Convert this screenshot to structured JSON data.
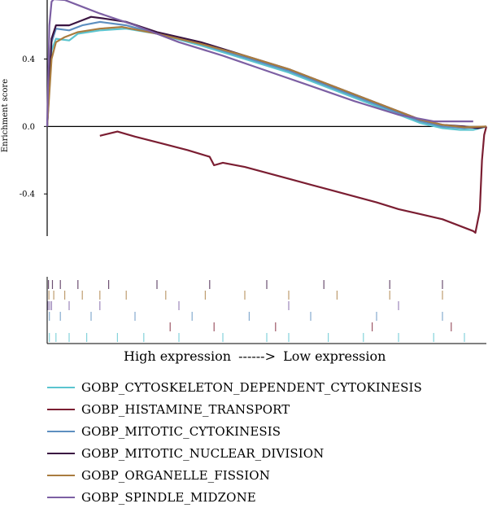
{
  "chart_data": {
    "type": "line",
    "title": "",
    "xlabel": "",
    "ylabel": "Enrichment score",
    "ylim": [
      -0.65,
      0.75
    ],
    "xlim": [
      0,
      1
    ],
    "yticks": [
      "0.4",
      "0.0",
      "-0.4"
    ],
    "ytick_values": [
      0.4,
      0.0,
      -0.4
    ],
    "grid": false,
    "legend_placement": "bottom",
    "series": [
      {
        "name": "GOBP_CYTOSKELETON_DEPENDENT_CYTOKINESIS",
        "color": "#5bc4cf",
        "points": [
          [
            0.0,
            0.0
          ],
          [
            0.01,
            0.45
          ],
          [
            0.02,
            0.52
          ],
          [
            0.05,
            0.51
          ],
          [
            0.07,
            0.55
          ],
          [
            0.12,
            0.57
          ],
          [
            0.18,
            0.58
          ],
          [
            0.25,
            0.55
          ],
          [
            0.35,
            0.48
          ],
          [
            0.45,
            0.4
          ],
          [
            0.55,
            0.32
          ],
          [
            0.65,
            0.22
          ],
          [
            0.75,
            0.12
          ],
          [
            0.85,
            0.02
          ],
          [
            0.9,
            -0.01
          ],
          [
            0.94,
            -0.02
          ],
          [
            0.97,
            -0.02
          ],
          [
            1.0,
            0.0
          ]
        ],
        "hits": [
          0.005,
          0.02,
          0.05,
          0.09,
          0.16,
          0.22,
          0.3,
          0.4,
          0.5,
          0.55,
          0.64,
          0.72,
          0.8,
          0.88,
          0.95
        ]
      },
      {
        "name": "GOBP_HISTAMINE_TRANSPORT",
        "color": "#7b1e32",
        "points": [
          [
            0.12,
            -0.055
          ],
          [
            0.16,
            -0.03
          ],
          [
            0.2,
            -0.06
          ],
          [
            0.26,
            -0.1
          ],
          [
            0.32,
            -0.14
          ],
          [
            0.37,
            -0.18
          ],
          [
            0.38,
            -0.23
          ],
          [
            0.4,
            -0.215
          ],
          [
            0.45,
            -0.24
          ],
          [
            0.55,
            -0.31
          ],
          [
            0.65,
            -0.38
          ],
          [
            0.75,
            -0.45
          ],
          [
            0.8,
            -0.49
          ],
          [
            0.85,
            -0.52
          ],
          [
            0.9,
            -0.55
          ],
          [
            0.97,
            -0.62
          ],
          [
            0.975,
            -0.63
          ],
          [
            0.985,
            -0.5
          ],
          [
            0.99,
            -0.2
          ],
          [
            0.995,
            -0.05
          ],
          [
            1.0,
            0.0
          ]
        ],
        "hits": [
          0.28,
          0.38,
          0.52,
          0.74,
          0.92
        ]
      },
      {
        "name": "GOBP_MITOTIC_CYTOKINESIS",
        "color": "#5d8fc0",
        "points": [
          [
            0.0,
            0.0
          ],
          [
            0.01,
            0.5
          ],
          [
            0.02,
            0.58
          ],
          [
            0.05,
            0.57
          ],
          [
            0.08,
            0.6
          ],
          [
            0.12,
            0.62
          ],
          [
            0.18,
            0.6
          ],
          [
            0.25,
            0.55
          ],
          [
            0.35,
            0.49
          ],
          [
            0.45,
            0.41
          ],
          [
            0.55,
            0.33
          ],
          [
            0.65,
            0.23
          ],
          [
            0.75,
            0.13
          ],
          [
            0.85,
            0.03
          ],
          [
            0.9,
            0.0
          ],
          [
            0.95,
            -0.01
          ],
          [
            1.0,
            0.0
          ]
        ],
        "hits": [
          0.005,
          0.03,
          0.1,
          0.2,
          0.33,
          0.46,
          0.6,
          0.75,
          0.9
        ]
      },
      {
        "name": "GOBP_MITOTIC_NUCLEAR_DIVISION",
        "color": "#3b1542",
        "points": [
          [
            0.0,
            0.0
          ],
          [
            0.01,
            0.52
          ],
          [
            0.02,
            0.6
          ],
          [
            0.05,
            0.6
          ],
          [
            0.08,
            0.63
          ],
          [
            0.1,
            0.65
          ],
          [
            0.13,
            0.64
          ],
          [
            0.18,
            0.62
          ],
          [
            0.25,
            0.56
          ],
          [
            0.35,
            0.5
          ],
          [
            0.45,
            0.42
          ],
          [
            0.55,
            0.34
          ],
          [
            0.65,
            0.24
          ],
          [
            0.75,
            0.14
          ],
          [
            0.85,
            0.04
          ],
          [
            0.9,
            0.01
          ],
          [
            0.95,
            0.0
          ],
          [
            0.98,
            -0.01
          ],
          [
            1.0,
            0.0
          ]
        ],
        "hits": [
          0.003,
          0.012,
          0.03,
          0.07,
          0.14,
          0.25,
          0.37,
          0.5,
          0.63,
          0.78,
          0.9
        ]
      },
      {
        "name": "GOBP_ORGANELLE_FISSION",
        "color": "#a97c3f",
        "points": [
          [
            0.0,
            0.0
          ],
          [
            0.01,
            0.4
          ],
          [
            0.02,
            0.5
          ],
          [
            0.04,
            0.53
          ],
          [
            0.07,
            0.56
          ],
          [
            0.12,
            0.58
          ],
          [
            0.17,
            0.59
          ],
          [
            0.25,
            0.55
          ],
          [
            0.35,
            0.49
          ],
          [
            0.45,
            0.42
          ],
          [
            0.55,
            0.34
          ],
          [
            0.65,
            0.24
          ],
          [
            0.75,
            0.14
          ],
          [
            0.85,
            0.04
          ],
          [
            0.9,
            0.01
          ],
          [
            0.95,
            -0.005
          ],
          [
            1.0,
            0.0
          ]
        ],
        "hits": [
          0.004,
          0.015,
          0.04,
          0.08,
          0.12,
          0.18,
          0.27,
          0.36,
          0.45,
          0.55,
          0.66,
          0.78,
          0.9
        ]
      },
      {
        "name": "GOBP_SPINDLE_MIDZONE",
        "color": "#7c5fa3",
        "points": [
          [
            0.0,
            0.0
          ],
          [
            0.005,
            0.6
          ],
          [
            0.01,
            0.74
          ],
          [
            0.015,
            0.755
          ],
          [
            0.04,
            0.75
          ],
          [
            0.08,
            0.71
          ],
          [
            0.12,
            0.67
          ],
          [
            0.2,
            0.6
          ],
          [
            0.3,
            0.5
          ],
          [
            0.4,
            0.42
          ],
          [
            0.5,
            0.33
          ],
          [
            0.6,
            0.24
          ],
          [
            0.7,
            0.15
          ],
          [
            0.8,
            0.07
          ],
          [
            0.88,
            0.03
          ],
          [
            0.92,
            0.03
          ],
          [
            0.97,
            0.03
          ]
        ],
        "hits": [
          0.002,
          0.006,
          0.01,
          0.05,
          0.12,
          0.3,
          0.55,
          0.8
        ]
      }
    ]
  },
  "caption": {
    "high": "High expression",
    "arrow": "------>",
    "low": "Low expression"
  }
}
